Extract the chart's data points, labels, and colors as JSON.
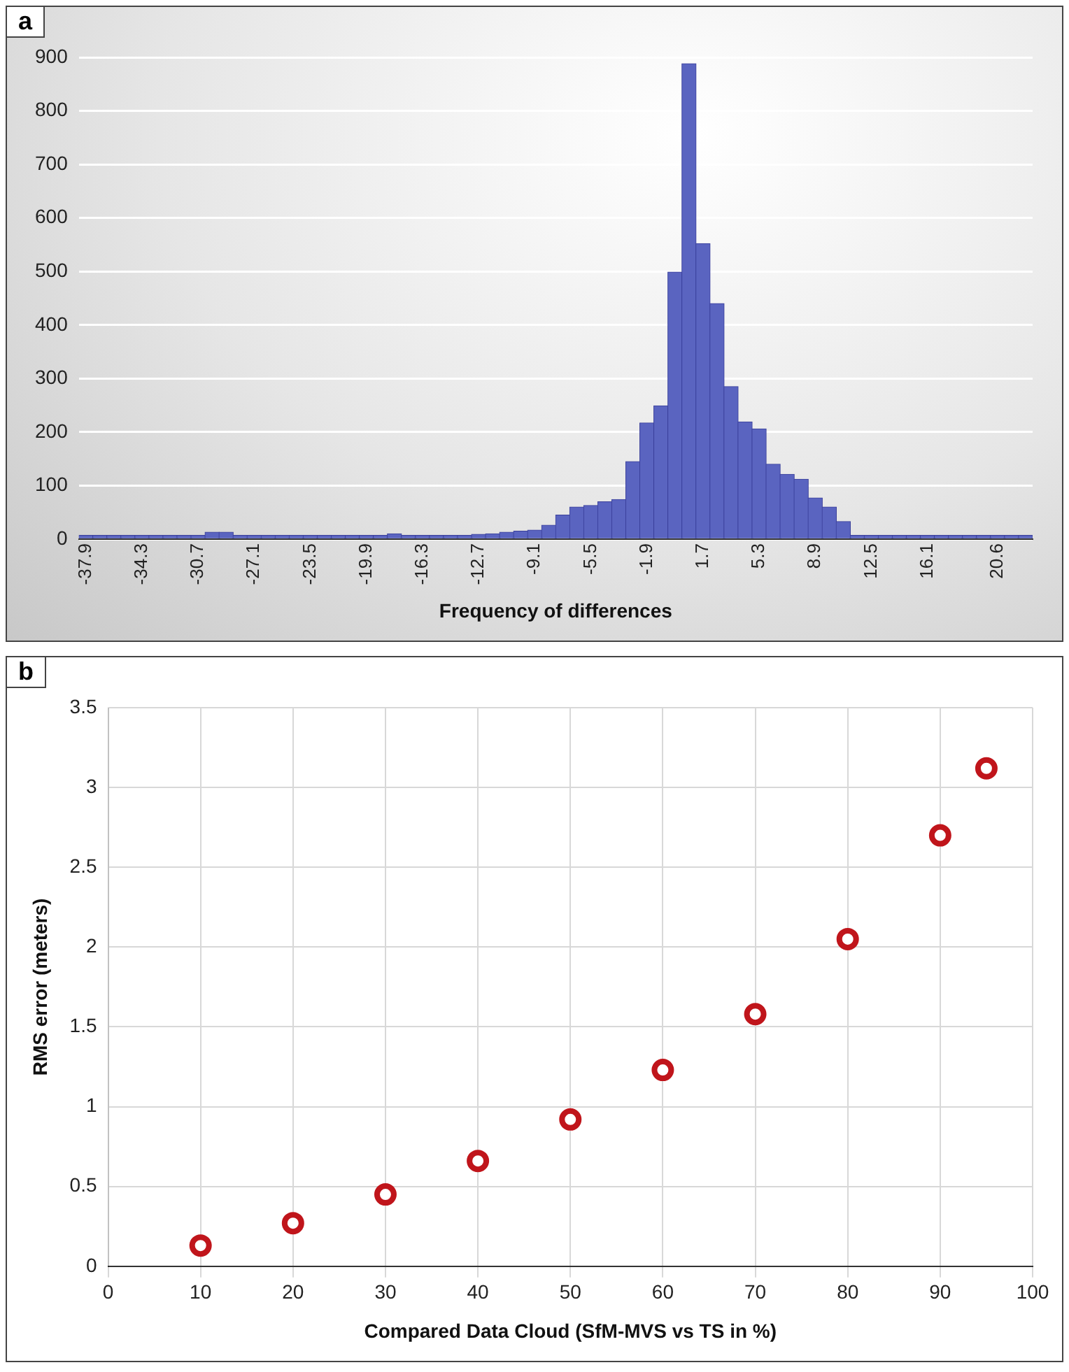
{
  "chart_data": [
    {
      "type": "bar",
      "xlabel": "Frequency of differences",
      "annotations": [
        "a"
      ],
      "categories": [
        "-37.9",
        null,
        null,
        null,
        "-34.3",
        null,
        null,
        null,
        "-30.7",
        null,
        null,
        null,
        "-27.1",
        null,
        null,
        null,
        "-23.5",
        null,
        null,
        null,
        "-19.9",
        null,
        null,
        null,
        "-16.3",
        null,
        null,
        null,
        "-12.7",
        null,
        null,
        null,
        "-9.1",
        null,
        null,
        null,
        "-5.5",
        null,
        null,
        null,
        "-1.9",
        null,
        null,
        null,
        "1.7",
        null,
        null,
        null,
        "5.3",
        null,
        null,
        null,
        "8.9",
        null,
        null,
        null,
        "12.5",
        null,
        null,
        null,
        "16.1",
        null,
        null,
        null,
        null,
        "20.6",
        null,
        null
      ],
      "values": [
        7,
        7,
        7,
        7,
        7,
        7,
        7,
        7,
        7,
        13,
        13,
        7,
        7,
        7,
        7,
        7,
        7,
        7,
        7,
        7,
        7,
        7,
        10,
        7,
        7,
        7,
        7,
        7,
        9,
        10,
        13,
        15,
        17,
        26,
        45,
        60,
        63,
        70,
        74,
        145,
        217,
        249,
        499,
        888,
        552,
        440,
        285,
        219,
        206,
        140,
        121,
        112,
        77,
        60,
        33,
        7,
        7,
        7,
        7,
        7,
        7,
        7,
        7,
        7,
        7,
        7,
        7,
        7
      ],
      "color": "#5a64c0",
      "ylim": [
        0,
        900
      ],
      "yticks": [
        0,
        100,
        200,
        300,
        400,
        500,
        600,
        700,
        800,
        900
      ],
      "grid": "y"
    },
    {
      "type": "scatter",
      "xlabel": "Compared Data Cloud (SfM-MVS vs TS in %)",
      "ylabel": "RMS error (meters)",
      "annotations": [
        "b"
      ],
      "x": [
        10,
        20,
        30,
        40,
        50,
        60,
        70,
        80,
        90,
        95
      ],
      "values": [
        0.13,
        0.27,
        0.45,
        0.66,
        0.92,
        1.23,
        1.58,
        2.05,
        2.7,
        3.12
      ],
      "color": "#c0151b",
      "marker": "circle",
      "xlim": [
        0,
        100
      ],
      "xticks": [
        0,
        10,
        20,
        30,
        40,
        50,
        60,
        70,
        80,
        90,
        100
      ],
      "ylim": [
        0,
        3.5
      ],
      "yticks": [
        0,
        0.5,
        1,
        1.5,
        2,
        2.5,
        3,
        3.5
      ],
      "grid": true
    }
  ]
}
